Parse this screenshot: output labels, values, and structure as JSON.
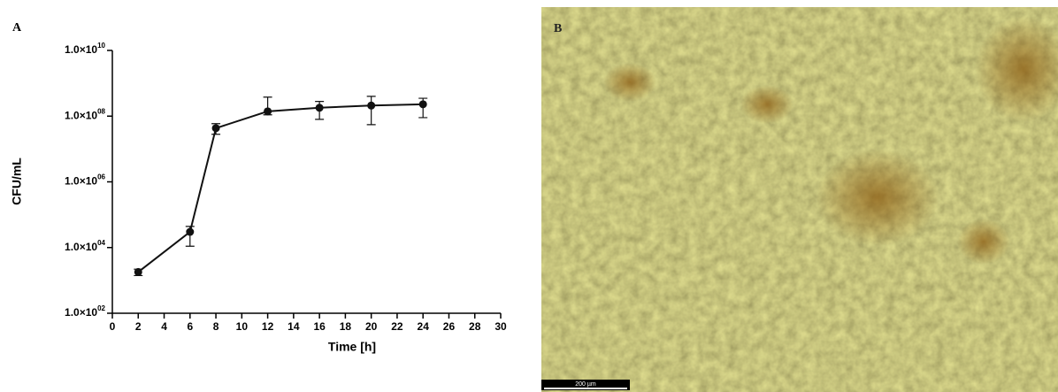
{
  "chart_data": {
    "type": "line",
    "panel_label": "A",
    "xlabel": "Time [h]",
    "ylabel": "CFU/mL",
    "x": [
      2,
      6,
      8,
      12,
      16,
      20,
      24
    ],
    "values": [
      1800,
      30000,
      43000000,
      140000000,
      180000000,
      210000000,
      230000000
    ],
    "yerr_minus": [
      400,
      19000,
      15000000,
      30000000,
      100000000,
      155000000,
      140000000
    ],
    "yerr_plus": [
      400,
      14000,
      16000000,
      240000000,
      100000000,
      190000000,
      120000000
    ],
    "color": "#111111",
    "log_y": true,
    "xlim": [
      0,
      30
    ],
    "xticks": [
      0,
      2,
      4,
      6,
      8,
      10,
      12,
      14,
      16,
      18,
      20,
      22,
      24,
      26,
      28,
      30
    ],
    "ylim": [
      100,
      10000000000
    ],
    "yticks": [
      {
        "value": 100,
        "label": "1.0×10",
        "exponent": "02"
      },
      {
        "value": 10000,
        "label": "1.0×10",
        "exponent": "04"
      },
      {
        "value": 1000000,
        "label": "1.0×10",
        "exponent": "06"
      },
      {
        "value": 100000000,
        "label": "1.0×10",
        "exponent": "08"
      },
      {
        "value": 10000000000,
        "label": "1.0×10",
        "exponent": "10"
      }
    ]
  },
  "image": {
    "panel_label": "B",
    "scale_bar_label": "200 µm"
  }
}
